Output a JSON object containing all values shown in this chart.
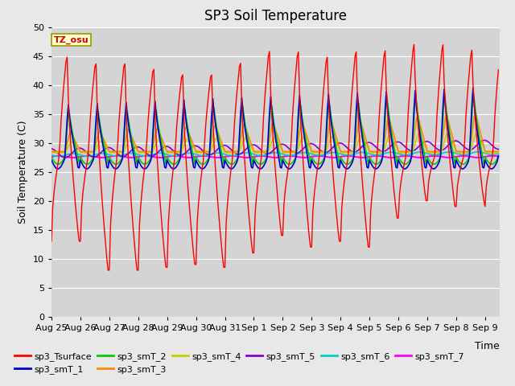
{
  "title": "SP3 Soil Temperature",
  "ylabel": "Soil Temperature (C)",
  "xlabel": "Time",
  "tz_label": "TZ_osu",
  "ylim": [
    0,
    50
  ],
  "yticks": [
    0,
    5,
    10,
    15,
    20,
    25,
    30,
    35,
    40,
    45,
    50
  ],
  "x_tick_labels": [
    "Aug 25",
    "Aug 26",
    "Aug 27",
    "Aug 28",
    "Aug 29",
    "Aug 30",
    "Aug 31",
    "Sep 1",
    "Sep 2",
    "Sep 3",
    "Sep 4",
    "Sep 5",
    "Sep 6",
    "Sep 7",
    "Sep 8",
    "Sep 9"
  ],
  "series_colors": {
    "sp3_Tsurface": "#ff0000",
    "sp3_smT_1": "#0000cc",
    "sp3_smT_2": "#00cc00",
    "sp3_smT_3": "#ff8800",
    "sp3_smT_4": "#cccc00",
    "sp3_smT_5": "#8800cc",
    "sp3_smT_6": "#00cccc",
    "sp3_smT_7": "#ff00ff"
  },
  "background_color": "#e8e8e8",
  "plot_bg_color": "#d4d4d4",
  "grid_color": "#ffffff",
  "title_fontsize": 12,
  "label_fontsize": 9,
  "tick_fontsize": 8,
  "legend_fontsize": 8,
  "figsize": [
    6.4,
    4.8
  ],
  "dpi": 100
}
